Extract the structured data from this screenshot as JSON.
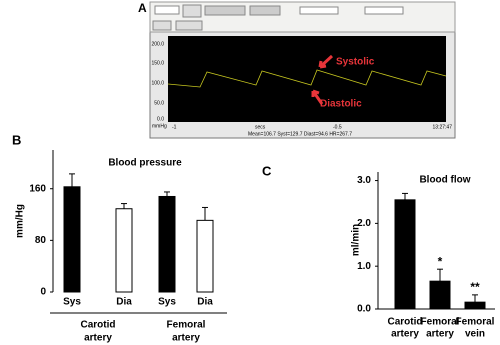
{
  "screenshot": {
    "label": "A",
    "yticks": [
      "200.0",
      "150.0",
      "100.0",
      "50.0",
      "0.0"
    ],
    "unit": "mmHg",
    "xticks": [
      "-1",
      "-0.5"
    ],
    "x_unit": "secs",
    "time": "13:27:47",
    "readout": "Mean=106.7   Syst=129.7   Diast=94.6   HR=267.7",
    "annotations": [
      "Systolic",
      "Diastolic"
    ]
  },
  "chart_data": [
    {
      "type": "bar",
      "panel_label": "B",
      "title": "Blood pressure",
      "y_label": "mm/Hg",
      "categories": [
        "Sys",
        "Dia",
        "Sys",
        "Dia"
      ],
      "values": [
        163,
        129,
        148,
        111
      ],
      "errors": [
        20,
        8,
        7,
        20
      ],
      "colors": [
        "#000000",
        "#ffffff",
        "#000000",
        "#ffffff"
      ],
      "group_labels": [
        [
          "Carotid",
          "artery"
        ],
        [
          "Femoral",
          "artery"
        ]
      ],
      "ylim": [
        0,
        220
      ],
      "yticks": [
        0,
        80,
        160
      ]
    },
    {
      "type": "bar",
      "panel_label": "C",
      "title": "Blood flow",
      "y_label": "ml/min",
      "categories": [
        [
          "Carotid",
          "artery"
        ],
        [
          "Femoral",
          "artery"
        ],
        [
          "Femoral",
          "vein"
        ]
      ],
      "values": [
        2.55,
        0.65,
        0.16
      ],
      "errors": [
        0.15,
        0.28,
        0.17
      ],
      "color": "#000000",
      "value_annotations": [
        null,
        "*",
        "**"
      ],
      "ylim": [
        0,
        3.2
      ],
      "yticks": [
        {
          "value": 0,
          "label": "0.0"
        },
        {
          "value": 1,
          "label": "1.0"
        },
        {
          "value": 2,
          "label": "2.0"
        },
        {
          "value": 3,
          "label": "3.0"
        }
      ]
    }
  ]
}
